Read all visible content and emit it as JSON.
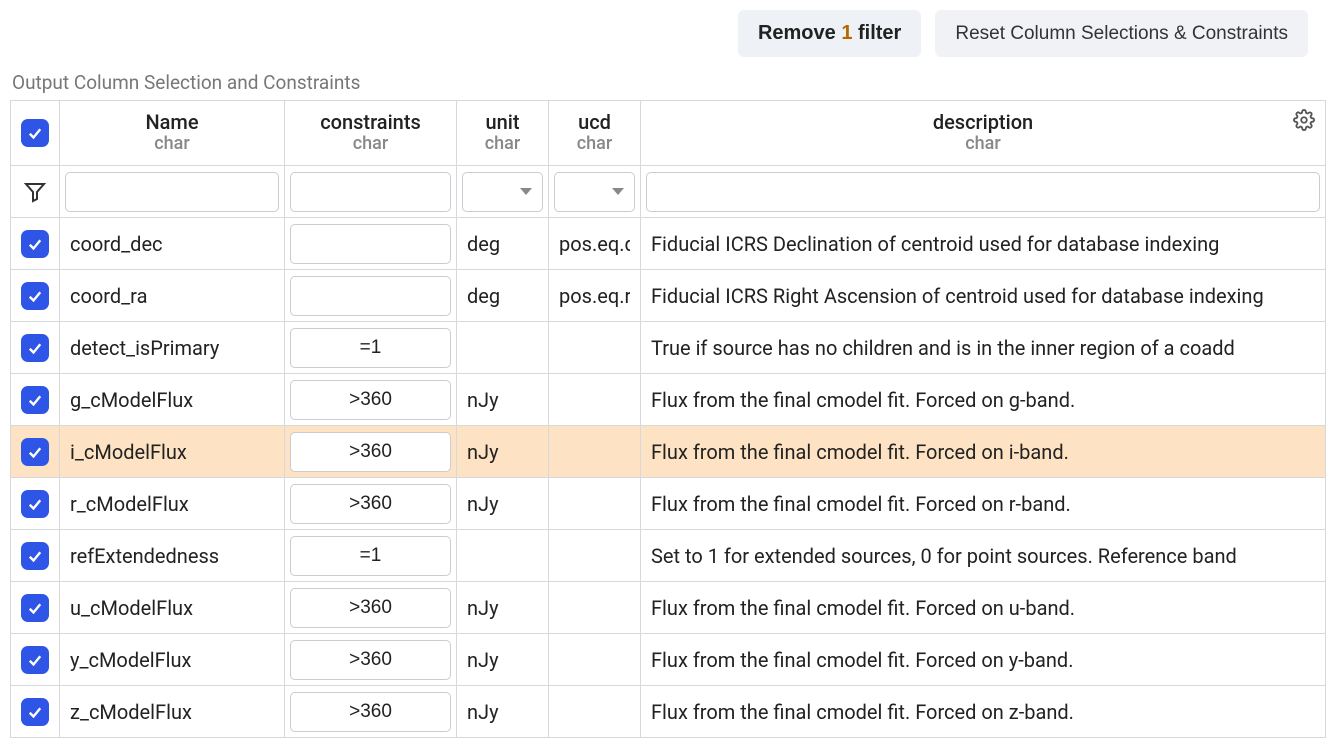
{
  "toolbar": {
    "remove_filter_prefix": "Remove ",
    "remove_filter_count": "1",
    "remove_filter_suffix": " filter",
    "reset_label": "Reset Column Selections & Constraints"
  },
  "section_title": "Output Column Selection and Constraints",
  "columns": {
    "name": {
      "label": "Name",
      "type": "char"
    },
    "constraints": {
      "label": "constraints",
      "type": "char"
    },
    "unit": {
      "label": "unit",
      "type": "char"
    },
    "ucd": {
      "label": "ucd",
      "type": "char"
    },
    "description": {
      "label": "description",
      "type": "char"
    }
  },
  "filters": {
    "name": "",
    "constraints": "",
    "unit": "",
    "ucd": "",
    "description": ""
  },
  "rows": [
    {
      "checked": true,
      "name": "coord_dec",
      "constraint": "",
      "unit": "deg",
      "ucd": "pos.eq.dec",
      "description": "Fiducial ICRS Declination of centroid used for database indexing",
      "highlight": false
    },
    {
      "checked": true,
      "name": "coord_ra",
      "constraint": "",
      "unit": "deg",
      "ucd": "pos.eq.ra",
      "description": "Fiducial ICRS Right Ascension of centroid used for database indexing",
      "highlight": false
    },
    {
      "checked": true,
      "name": "detect_isPrimary",
      "constraint": "=1",
      "unit": "",
      "ucd": "",
      "description": "True if source has no children and is in the inner region of a coadd",
      "highlight": false
    },
    {
      "checked": true,
      "name": "g_cModelFlux",
      "constraint": ">360",
      "unit": "nJy",
      "ucd": "",
      "description": "Flux from the final cmodel fit. Forced on g-band.",
      "highlight": false
    },
    {
      "checked": true,
      "name": "i_cModelFlux",
      "constraint": ">360",
      "unit": "nJy",
      "ucd": "",
      "description": "Flux from the final cmodel fit. Forced on i-band.",
      "highlight": true
    },
    {
      "checked": true,
      "name": "r_cModelFlux",
      "constraint": ">360",
      "unit": "nJy",
      "ucd": "",
      "description": "Flux from the final cmodel fit. Forced on r-band.",
      "highlight": false
    },
    {
      "checked": true,
      "name": "refExtendedness",
      "constraint": "=1",
      "unit": "",
      "ucd": "",
      "description": "Set to 1 for extended sources, 0 for point sources. Reference band",
      "highlight": false
    },
    {
      "checked": true,
      "name": "u_cModelFlux",
      "constraint": ">360",
      "unit": "nJy",
      "ucd": "",
      "description": "Flux from the final cmodel fit. Forced on u-band.",
      "highlight": false
    },
    {
      "checked": true,
      "name": "y_cModelFlux",
      "constraint": ">360",
      "unit": "nJy",
      "ucd": "",
      "description": "Flux from the final cmodel fit. Forced on y-band.",
      "highlight": false
    },
    {
      "checked": true,
      "name": "z_cModelFlux",
      "constraint": ">360",
      "unit": "nJy",
      "ucd": "",
      "description": "Flux from the final cmodel fit. Forced on z-band.",
      "highlight": false
    }
  ],
  "style": {
    "accent": "#2e55e5",
    "highlight_bg": "#fde3c3",
    "filter_count_color": "#b06a00",
    "border_color": "#d6d8dc"
  }
}
